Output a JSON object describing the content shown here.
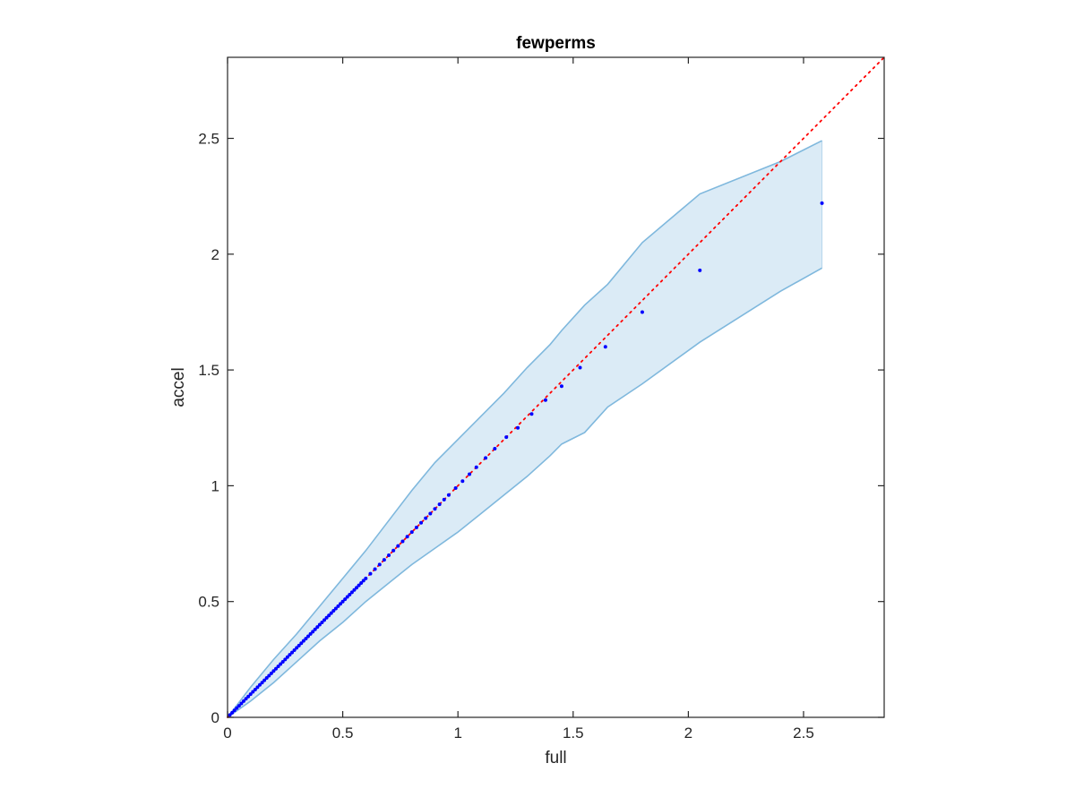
{
  "chart_data": {
    "type": "scatter",
    "title": "fewperms",
    "xlabel": "full",
    "ylabel": "accel",
    "xlim": [
      0,
      2.85
    ],
    "ylim": [
      0,
      2.85
    ],
    "xticks": [
      0,
      0.5,
      1,
      1.5,
      2,
      2.5
    ],
    "yticks": [
      0,
      0.5,
      1,
      1.5,
      2,
      2.5
    ],
    "xtick_labels": [
      "0",
      "0.5",
      "1",
      "1.5",
      "2",
      "2.5"
    ],
    "ytick_labels": [
      "0",
      "0.5",
      "1",
      "1.5",
      "2",
      "2.5"
    ],
    "grid": false,
    "box": true,
    "reference_line": {
      "style": "dotted",
      "color": "#ff0000",
      "from": [
        0,
        0
      ],
      "to": [
        2.85,
        2.85
      ]
    },
    "band": {
      "color": "#7fb8dd",
      "fill_opacity": 0.28,
      "x": [
        0,
        0.05,
        0.1,
        0.2,
        0.3,
        0.4,
        0.5,
        0.6,
        0.7,
        0.8,
        0.9,
        1.0,
        1.1,
        1.2,
        1.3,
        1.4,
        1.45,
        1.55,
        1.65,
        1.8,
        2.05,
        2.4,
        2.58
      ],
      "upper": [
        0,
        0.065,
        0.13,
        0.25,
        0.36,
        0.48,
        0.6,
        0.72,
        0.85,
        0.98,
        1.1,
        1.2,
        1.3,
        1.4,
        1.51,
        1.61,
        1.67,
        1.78,
        1.87,
        2.05,
        2.26,
        2.4,
        2.49
      ],
      "lower": [
        0,
        0.035,
        0.07,
        0.15,
        0.24,
        0.33,
        0.41,
        0.5,
        0.58,
        0.66,
        0.73,
        0.8,
        0.88,
        0.96,
        1.04,
        1.13,
        1.18,
        1.23,
        1.34,
        1.44,
        1.62,
        1.84,
        1.94
      ]
    },
    "series": [
      {
        "color": "#0000ff",
        "x": [
          0.01,
          0.02,
          0.03,
          0.04,
          0.05,
          0.06,
          0.07,
          0.08,
          0.09,
          0.1,
          0.11,
          0.12,
          0.13,
          0.14,
          0.15,
          0.16,
          0.17,
          0.18,
          0.19,
          0.2,
          0.21,
          0.22,
          0.23,
          0.24,
          0.25,
          0.26,
          0.27,
          0.28,
          0.29,
          0.3,
          0.31,
          0.32,
          0.33,
          0.34,
          0.35,
          0.36,
          0.37,
          0.38,
          0.39,
          0.4,
          0.41,
          0.42,
          0.43,
          0.44,
          0.45,
          0.46,
          0.47,
          0.48,
          0.49,
          0.5,
          0.51,
          0.52,
          0.53,
          0.54,
          0.55,
          0.56,
          0.57,
          0.58,
          0.59,
          0.6,
          0.62,
          0.64,
          0.66,
          0.68,
          0.7,
          0.72,
          0.74,
          0.76,
          0.78,
          0.8,
          0.82,
          0.84,
          0.86,
          0.88,
          0.9,
          0.92,
          0.94,
          0.96,
          0.99,
          1.02,
          1.05,
          1.08,
          1.12,
          1.16,
          1.21,
          1.26,
          1.32,
          1.38,
          1.45,
          1.53,
          1.64,
          1.8,
          2.05,
          2.58
        ],
        "y": [
          0.01,
          0.02,
          0.03,
          0.04,
          0.05,
          0.06,
          0.07,
          0.08,
          0.09,
          0.1,
          0.11,
          0.12,
          0.13,
          0.14,
          0.15,
          0.16,
          0.17,
          0.18,
          0.19,
          0.2,
          0.21,
          0.22,
          0.23,
          0.24,
          0.25,
          0.26,
          0.27,
          0.28,
          0.29,
          0.3,
          0.31,
          0.32,
          0.33,
          0.34,
          0.35,
          0.36,
          0.37,
          0.38,
          0.39,
          0.4,
          0.41,
          0.42,
          0.43,
          0.44,
          0.45,
          0.46,
          0.47,
          0.48,
          0.49,
          0.5,
          0.51,
          0.52,
          0.53,
          0.54,
          0.55,
          0.56,
          0.57,
          0.58,
          0.59,
          0.6,
          0.62,
          0.64,
          0.66,
          0.68,
          0.7,
          0.72,
          0.74,
          0.76,
          0.78,
          0.8,
          0.82,
          0.84,
          0.86,
          0.88,
          0.9,
          0.92,
          0.94,
          0.96,
          0.99,
          1.02,
          1.05,
          1.08,
          1.12,
          1.16,
          1.21,
          1.25,
          1.31,
          1.37,
          1.43,
          1.51,
          1.6,
          1.75,
          1.93,
          2.22
        ]
      }
    ]
  }
}
